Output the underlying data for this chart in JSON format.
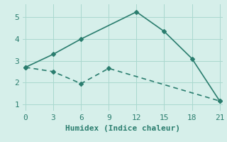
{
  "line1_x": [
    0,
    3,
    6,
    12,
    15,
    18,
    21
  ],
  "line1_y": [
    2.7,
    3.3,
    4.0,
    5.25,
    4.35,
    3.1,
    1.15
  ],
  "line2_x": [
    0,
    3,
    6,
    9,
    21
  ],
  "line2_y": [
    2.7,
    2.5,
    1.95,
    2.65,
    1.15
  ],
  "color": "#2a7d6e",
  "bg_color": "#d6efea",
  "xlabel": "Humidex (Indice chaleur)",
  "xlim": [
    0,
    21
  ],
  "ylim": [
    0.7,
    5.6
  ],
  "xticks": [
    0,
    3,
    6,
    9,
    12,
    15,
    18,
    21
  ],
  "yticks": [
    1,
    2,
    3,
    4,
    5
  ],
  "grid_color": "#aad8cf",
  "marker_size": 3,
  "line_width": 1.2,
  "font_size": 8
}
